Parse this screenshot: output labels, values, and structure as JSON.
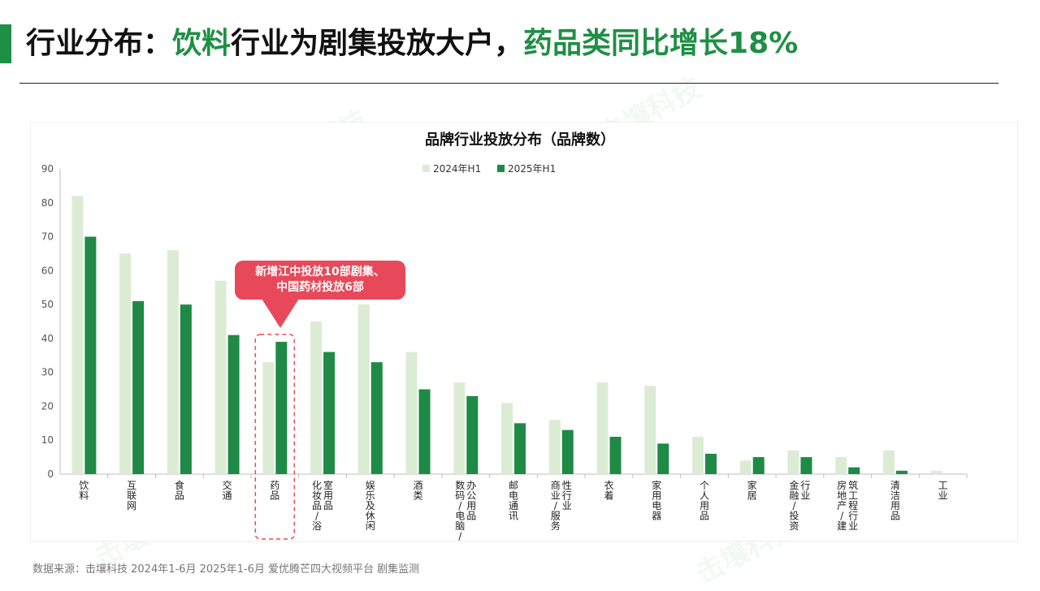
{
  "headline": {
    "part1": "行业分布：",
    "part2": "饮料",
    "part3": "行业为剧集投放大户，",
    "part4": "药品类同比增长18%"
  },
  "callout": {
    "line1": "新增江中投放10部剧集、",
    "line2": "中国药材投放6部"
  },
  "watermark": "击壤科技",
  "footnote": "数据来源：击壤科技 2024年1-6月 2025年1-6月 爱优腾芒四大视频平台 剧集监测",
  "colors": {
    "accent": "#1f8f45",
    "series_2024": "#dcecd4",
    "series_2025": "#1e8a46",
    "callout": "#e8495a"
  },
  "chart_data": {
    "type": "bar",
    "title": "品牌行业投放分布（品牌数）",
    "legend_position": "top-center",
    "ylim": [
      0,
      90
    ],
    "yticks": [
      0,
      10,
      20,
      30,
      40,
      50,
      60,
      70,
      80,
      90
    ],
    "categories": [
      "饮料",
      "互联网",
      "食品",
      "交通",
      "药品",
      "化妆品/浴室用品",
      "娱乐及休闲",
      "酒类",
      "数码/电脑/办公用品",
      "邮电通讯",
      "商业/服务性行业",
      "衣着",
      "家用电器",
      "个人用品",
      "家居",
      "金融/投资行业",
      "房地产/建筑工程行业",
      "清洁用品",
      "工业"
    ],
    "category_labels": [
      [
        "饮料"
      ],
      [
        "互联网"
      ],
      [
        "食品"
      ],
      [
        "交通"
      ],
      [
        "药品"
      ],
      [
        "化妆品/浴",
        "室用品"
      ],
      [
        "娱乐及休闲"
      ],
      [
        "酒类"
      ],
      [
        "数码/电脑/",
        "办公用品"
      ],
      [
        "邮电通讯"
      ],
      [
        "商业/服务",
        "性行业"
      ],
      [
        "衣着"
      ],
      [
        "家用电器"
      ],
      [
        "个人用品"
      ],
      [
        "家居"
      ],
      [
        "金融/投资",
        "行业"
      ],
      [
        "房地产/建",
        "筑工程行业"
      ],
      [
        "清洁用品"
      ],
      [
        "工业"
      ]
    ],
    "series": [
      {
        "name": "2024年H1",
        "values": [
          82,
          65,
          66,
          57,
          33,
          45,
          50,
          36,
          27,
          21,
          16,
          27,
          26,
          11,
          4,
          7,
          5,
          7,
          1
        ]
      },
      {
        "name": "2025年H1",
        "values": [
          70,
          51,
          50,
          41,
          39,
          36,
          33,
          25,
          23,
          15,
          13,
          11,
          9,
          6,
          5,
          5,
          2,
          1,
          0
        ]
      }
    ],
    "highlight_category": "药品"
  }
}
